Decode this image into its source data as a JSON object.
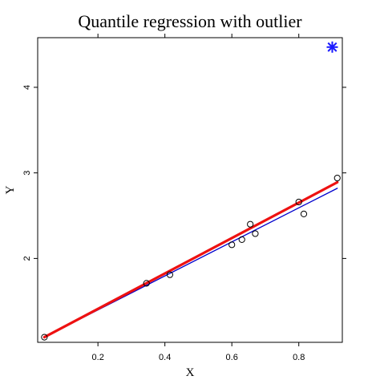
{
  "chart_data": {
    "type": "scatter",
    "title": "Quantile regression with outlier",
    "xlabel": "X",
    "ylabel": "Y",
    "xlim": [
      0.02,
      0.93
    ],
    "ylim": [
      1.02,
      4.58
    ],
    "x_ticks": [
      0.2,
      0.4,
      0.6,
      0.8
    ],
    "x_tick_labels": [
      "0.2",
      "0.4",
      "0.6",
      "0.8"
    ],
    "y_ticks": [
      2,
      3,
      4
    ],
    "y_tick_labels": [
      "2",
      "3",
      "4"
    ],
    "grid": false,
    "points": [
      {
        "x": 0.04,
        "y": 1.08
      },
      {
        "x": 0.345,
        "y": 1.71
      },
      {
        "x": 0.415,
        "y": 1.81
      },
      {
        "x": 0.6,
        "y": 2.16
      },
      {
        "x": 0.63,
        "y": 2.22
      },
      {
        "x": 0.655,
        "y": 2.4
      },
      {
        "x": 0.67,
        "y": 2.29
      },
      {
        "x": 0.8,
        "y": 2.66
      },
      {
        "x": 0.815,
        "y": 2.52
      },
      {
        "x": 0.915,
        "y": 2.94
      }
    ],
    "outlier": {
      "x": 0.9,
      "y": 4.47
    },
    "lines": [
      {
        "color": "#0000cc",
        "width": 1.3,
        "x": [
          0.04,
          0.915
        ],
        "y": [
          1.08,
          2.82
        ]
      },
      {
        "color": "#ee1111",
        "width": 3.2,
        "x": [
          0.04,
          0.915
        ],
        "y": [
          1.08,
          2.89
        ]
      }
    ],
    "colors": {
      "outlier": "#1a1aff",
      "points": "#000000"
    }
  }
}
